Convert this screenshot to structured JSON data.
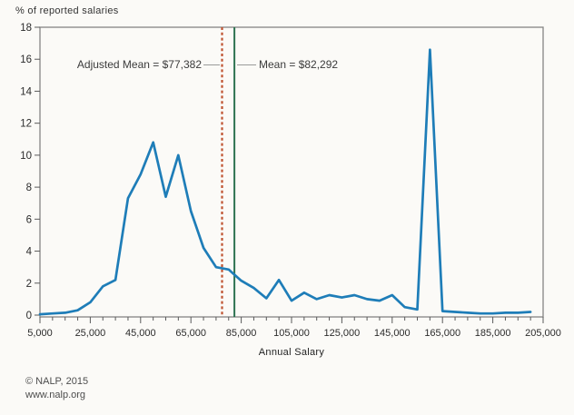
{
  "chart_data": {
    "type": "line",
    "y_axis_title": "% of reported salaries",
    "x_axis_title": "Annual Salary",
    "xlim": [
      5000,
      205000
    ],
    "ylim": [
      0,
      18
    ],
    "grid": false,
    "legend": "none",
    "y_ticks": [
      "18",
      "16",
      "14",
      "12",
      "10",
      "8",
      "6",
      "4",
      "2",
      "0"
    ],
    "y_tick_values": [
      18,
      16,
      14,
      12,
      10,
      8,
      6,
      4,
      2,
      0
    ],
    "x_tick_labels": [
      "5,000",
      "25,000",
      "45,000",
      "65,000",
      "85,000",
      "105,000",
      "125,000",
      "145,000",
      "165,000",
      "185,000",
      "205,000"
    ],
    "x_major_ticks": [
      5000,
      25000,
      45000,
      65000,
      85000,
      105000,
      125000,
      145000,
      165000,
      185000,
      205000
    ],
    "x_minor_tick_step": 5000,
    "series": [
      {
        "name": "% of reported salaries",
        "color": "#1e7db8",
        "x": [
          5000,
          10000,
          15000,
          20000,
          25000,
          30000,
          35000,
          40000,
          45000,
          50000,
          55000,
          60000,
          65000,
          70000,
          75000,
          80000,
          85000,
          90000,
          95000,
          100000,
          105000,
          110000,
          115000,
          120000,
          125000,
          130000,
          135000,
          140000,
          145000,
          150000,
          155000,
          160000,
          165000,
          170000,
          175000,
          180000,
          185000,
          190000,
          195000,
          200000
        ],
        "values": [
          0.05,
          0.1,
          0.15,
          0.3,
          0.8,
          1.8,
          2.2,
          7.3,
          8.8,
          10.8,
          7.4,
          10.0,
          6.5,
          4.2,
          3.0,
          2.85,
          2.15,
          1.7,
          1.05,
          2.2,
          0.9,
          1.4,
          1.0,
          1.25,
          1.1,
          1.25,
          1.0,
          0.9,
          1.25,
          0.5,
          0.35,
          16.6,
          0.25,
          0.2,
          0.15,
          0.1,
          0.1,
          0.15,
          0.15,
          0.2
        ]
      }
    ],
    "mean_lines": {
      "adjusted": {
        "label": "Adjusted Mean = $77,382",
        "value": 77382,
        "color": "#bf5230",
        "style": "dashed"
      },
      "mean": {
        "label": "Mean = $82,292",
        "value": 82292,
        "color": "#2e7351",
        "style": "solid"
      }
    }
  },
  "footer": {
    "copyright": "© NALP, 2015",
    "url": "www.nalp.org"
  },
  "colors": {
    "background": "#fbfaf7",
    "frame": "#848484",
    "tick": "#5a5a5a",
    "text": "#2b2b2b",
    "leader": "#9a9a9a"
  }
}
